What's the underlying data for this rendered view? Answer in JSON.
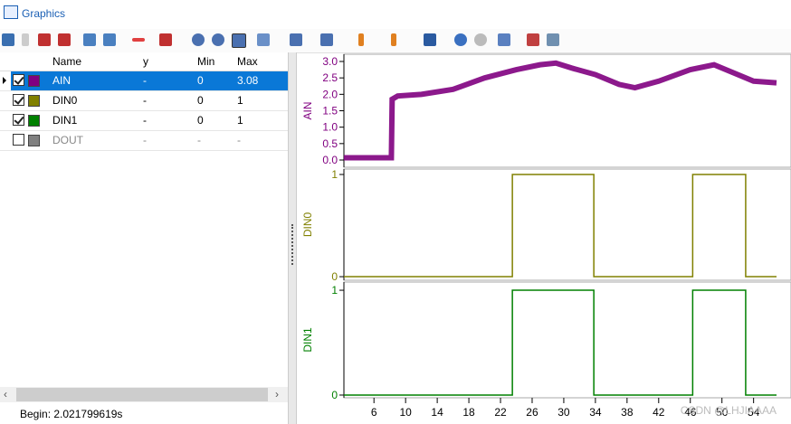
{
  "window": {
    "title": "Graphics"
  },
  "table": {
    "columns": [
      "Name",
      "y",
      "Min",
      "Max"
    ],
    "selected_row": 0,
    "rows": [
      {
        "checked": true,
        "color": "#800080",
        "cells": [
          "AIN",
          "-",
          "0",
          "3.08"
        ]
      },
      {
        "checked": true,
        "color": "#808000",
        "cells": [
          "DIN0",
          "-",
          "0",
          "1"
        ]
      },
      {
        "checked": true,
        "color": "#008000",
        "cells": [
          "DIN1",
          "-",
          "0",
          "1"
        ]
      },
      {
        "checked": false,
        "color": "#808080",
        "cells": [
          "DOUT",
          "-",
          "-",
          "-"
        ]
      }
    ]
  },
  "status": {
    "begin": "Begin: 2.021799619s"
  },
  "plots": {
    "xlim": [
      2.2,
      56.9
    ],
    "xticks": [
      6,
      10,
      14,
      18,
      22,
      26,
      30,
      34,
      38,
      42,
      46,
      50,
      54
    ],
    "panels": [
      {
        "label": "AIN",
        "color": "#800080",
        "step": false,
        "ylim": [
          -0.22,
          3.22
        ],
        "yticks": [
          {
            "value": 0,
            "label": "0.0"
          },
          0.5,
          {
            "value": 1,
            "label": "1.0"
          },
          1.5,
          {
            "value": 2,
            "label": "2.0"
          },
          2.5,
          {
            "value": 3,
            "label": "3.0"
          }
        ],
        "x": [
          2.2,
          8.2,
          8.3,
          9,
          12,
          16,
          20,
          24,
          27,
          29,
          31,
          34,
          37,
          39,
          42,
          46,
          49,
          52,
          54,
          56.9
        ],
        "values": [
          0.07,
          0.07,
          1.85,
          1.95,
          2.0,
          2.15,
          2.5,
          2.75,
          2.9,
          2.95,
          2.8,
          2.6,
          2.3,
          2.2,
          2.4,
          2.75,
          2.9,
          2.6,
          2.4,
          2.35
        ]
      },
      {
        "label": "DIN0",
        "color": "#808000",
        "step": true,
        "ylim": [
          -0.035,
          1.053
        ],
        "yticks": [
          0,
          1
        ],
        "x": [
          2.2,
          23.5,
          33.8,
          46.3,
          53,
          56.9
        ],
        "values": [
          0,
          1,
          0,
          1,
          0,
          0
        ]
      },
      {
        "label": "DIN1",
        "color": "#008000",
        "step": true,
        "ylim": [
          -0.026,
          1.078
        ],
        "yticks": [
          0,
          1
        ],
        "x": [
          2.2,
          23.5,
          33.8,
          46.3,
          53,
          56.9
        ],
        "values": [
          0,
          1,
          0,
          1,
          0,
          0
        ]
      }
    ]
  },
  "watermark": "CSDN @LHJIAAAA"
}
